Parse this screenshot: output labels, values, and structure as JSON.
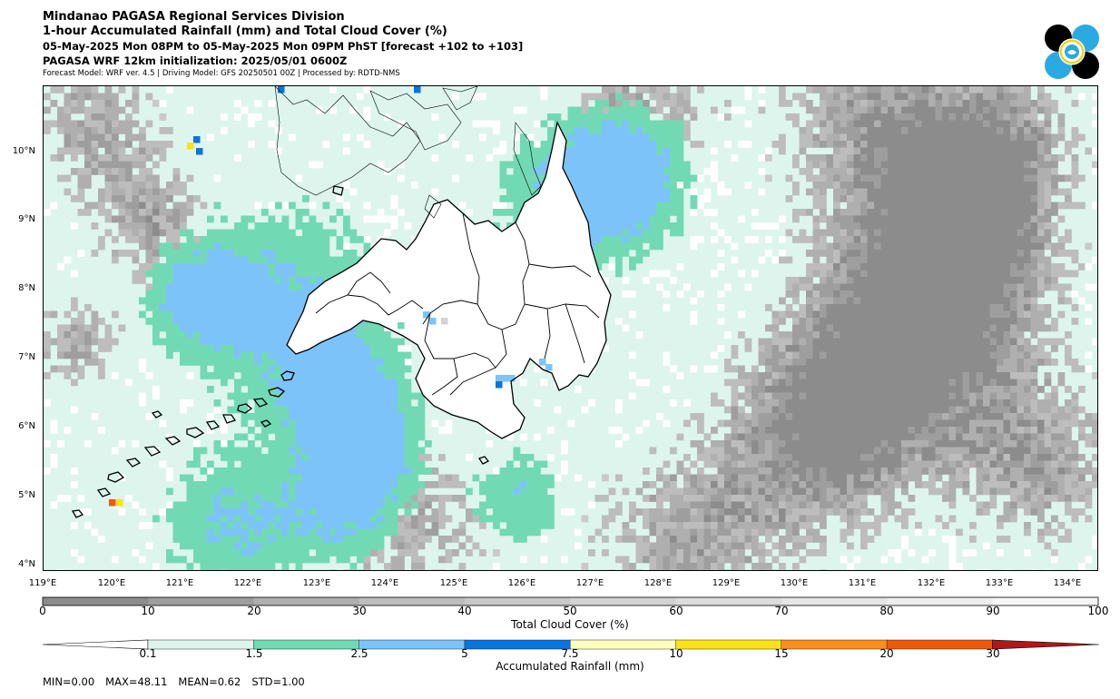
{
  "header": {
    "line1": "Mindanao PAGASA Regional Services Division",
    "line2": "1-hour Accumulated Rainfall (mm) and Total Cloud Cover (%)",
    "line3": "05-May-2025 Mon 08PM to 05-May-2025 Mon 09PM PhST [forecast +102 to +103]",
    "line4": "PAGASA WRF 12km initialization: 2025/05/01 0600Z",
    "line5": "Forecast Model: WRF ver. 4.5 | Driving Model: GFS 20250501 00Z | Processed by: RDTD-NMS"
  },
  "logo": {
    "icon": "pagasa-logo-icon",
    "colors": [
      "#000000",
      "#29abe2",
      "#f7d117"
    ]
  },
  "map": {
    "lat_labels": [
      "10°N",
      "9°N",
      "8°N",
      "7°N",
      "6°N",
      "5°N",
      "4°N"
    ],
    "lon_labels": [
      "119°E",
      "120°E",
      "121°E",
      "122°E",
      "123°E",
      "124°E",
      "125°E",
      "126°E",
      "127°E",
      "128°E",
      "129°E",
      "130°E",
      "131°E",
      "132°E",
      "133°E",
      "134°E"
    ],
    "lat_range": [
      3.9,
      11.0
    ],
    "lon_range": [
      119.0,
      134.5
    ]
  },
  "cloud_colorbar": {
    "label": "Total Cloud Cover (%)",
    "ticks": [
      "0",
      "10",
      "20",
      "30",
      "40",
      "50",
      "60",
      "70",
      "80",
      "90",
      "100"
    ],
    "colors": [
      "#8c8c8c",
      "#9e9e9e",
      "#afafaf",
      "#bdbdbd",
      "#c9c9c9",
      "#d3d3d3",
      "#dcdcdc",
      "#e5e5e5",
      "#eeeeee",
      "#f6f6f6"
    ]
  },
  "rain_colorbar": {
    "label": "Accumulated Rainfall (mm)",
    "ticks": [
      "0.1",
      "1.5",
      "2.5",
      "5",
      "7.5",
      "10",
      "15",
      "20",
      "30"
    ],
    "under_color": "#ffffff",
    "colors": [
      "#ddf5ed",
      "#72d9b5",
      "#7cc3fa",
      "#0a73dc",
      "#ffffc0",
      "#fce11b",
      "#f78f1e",
      "#ec5a0e"
    ],
    "over_color": "#b01818"
  },
  "stats": {
    "min": "MIN=0.00",
    "max": "MAX=48.11",
    "mean": "MEAN=0.62",
    "std": "STD=1.00"
  }
}
